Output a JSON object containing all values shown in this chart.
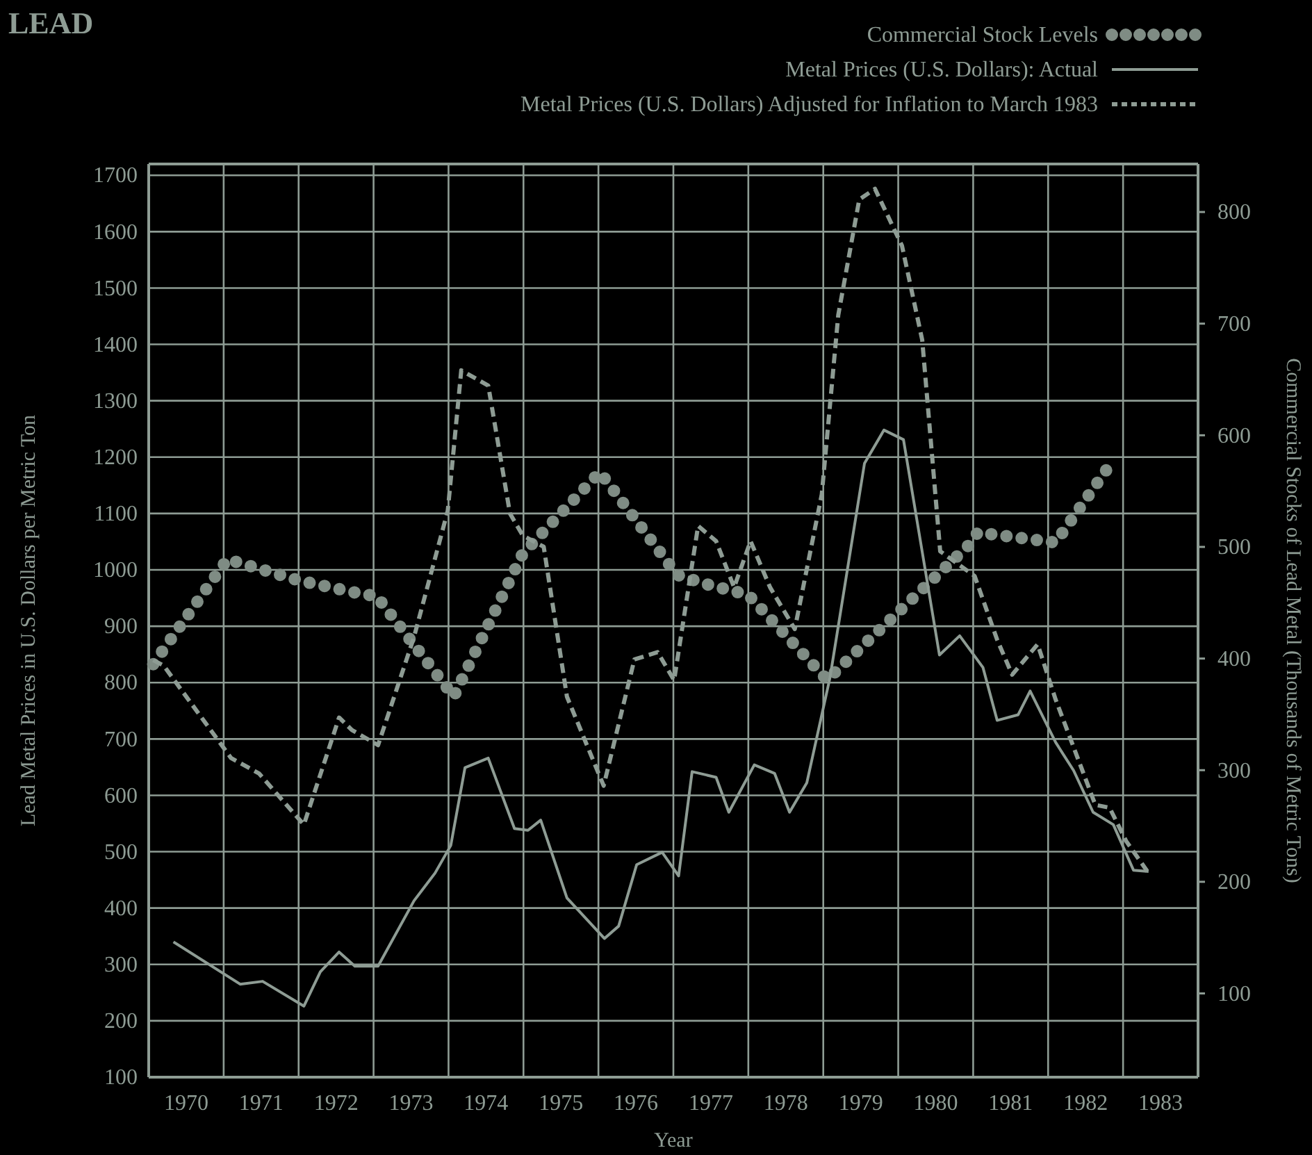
{
  "chart_data": {
    "type": "line",
    "title": "LEAD",
    "xlabel": "Year",
    "ylabel": "Lead Metal Prices in U.S. Dollars per Metric Ton",
    "y2label": "Commercial Stocks of Lead Metal (Thousands of Metric Tons)",
    "xlim": [
      1970,
      1984
    ],
    "xticks": [
      {
        "value": 1970,
        "label": null
      },
      {
        "value": 1970.5,
        "label": "1970"
      },
      {
        "value": 1971,
        "label": null
      },
      {
        "value": 1971.5,
        "label": "1971"
      },
      {
        "value": 1972,
        "label": null
      },
      {
        "value": 1972.5,
        "label": "1972"
      },
      {
        "value": 1973,
        "label": null
      },
      {
        "value": 1973.5,
        "label": "1973"
      },
      {
        "value": 1974,
        "label": null
      },
      {
        "value": 1974.5,
        "label": "1974"
      },
      {
        "value": 1975,
        "label": null
      },
      {
        "value": 1975.5,
        "label": "1975"
      },
      {
        "value": 1976,
        "label": null
      },
      {
        "value": 1976.5,
        "label": "1976"
      },
      {
        "value": 1977,
        "label": null
      },
      {
        "value": 1977.5,
        "label": "1977"
      },
      {
        "value": 1978,
        "label": null
      },
      {
        "value": 1978.5,
        "label": "1978"
      },
      {
        "value": 1979,
        "label": null
      },
      {
        "value": 1979.5,
        "label": "1979"
      },
      {
        "value": 1980,
        "label": null
      },
      {
        "value": 1980.5,
        "label": "1980"
      },
      {
        "value": 1981,
        "label": null
      },
      {
        "value": 1981.5,
        "label": "1981"
      },
      {
        "value": 1982,
        "label": null
      },
      {
        "value": 1982.5,
        "label": "1982"
      },
      {
        "value": 1983,
        "label": null
      },
      {
        "value": 1983.5,
        "label": "1983"
      },
      {
        "value": 1984,
        "label": null
      }
    ],
    "ylim": [
      100,
      1720
    ],
    "yticks": [
      100,
      200,
      300,
      400,
      500,
      600,
      700,
      800,
      900,
      1000,
      1100,
      1200,
      1300,
      1400,
      1500,
      1600,
      1700
    ],
    "y2lim": [
      25,
      843
    ],
    "y2ticks": [
      100,
      200,
      300,
      400,
      500,
      600,
      700,
      800
    ],
    "grid": true,
    "legend": "top right",
    "series": [
      {
        "name": "Commercial Stock Levels",
        "color": "#7f8c84",
        "axis": "y2",
        "line_style": "dotted",
        "x": [
          1970.06,
          1971.05,
          1972.0,
          1972.83,
          1973.04,
          1974.07,
          1974.99,
          1976.02,
          1977.05,
          1977.42,
          1978.0,
          1979.05,
          1980.98,
          1981.06,
          1982.1,
          1982.84
        ],
        "values": [
          395,
          489,
          470,
          458,
          456,
          366,
          494,
          567,
          475,
          467,
          457,
          381,
          504,
          513,
          504,
          575
        ]
      },
      {
        "name": "Metal Prices (U.S. Dollars): Actual",
        "color": "#8e9c94",
        "line_style": "solid",
        "x": [
          1970.33,
          1971.22,
          1971.52,
          1972.07,
          1972.29,
          1972.54,
          1972.75,
          1973.06,
          1973.54,
          1973.82,
          1974.03,
          1974.22,
          1974.53,
          1974.88,
          1975.06,
          1975.23,
          1975.58,
          1976.08,
          1976.27,
          1976.51,
          1976.85,
          1977.07,
          1977.25,
          1977.57,
          1977.74,
          1978.08,
          1978.35,
          1978.55,
          1978.78,
          1979.09,
          1979.55,
          1979.81,
          1980.07,
          1980.55,
          1980.82,
          1981.13,
          1981.32,
          1981.6,
          1981.76,
          1982.1,
          1982.34,
          1982.6,
          1982.87,
          1983.14,
          1983.34
        ],
        "values": [
          340,
          265,
          270,
          226,
          287,
          322,
          297,
          297,
          413,
          462,
          511,
          649,
          666,
          541,
          538,
          556,
          418,
          346,
          368,
          477,
          499,
          457,
          642,
          632,
          570,
          654,
          639,
          570,
          622,
          809,
          1189,
          1248,
          1231,
          849,
          883,
          827,
          733,
          743,
          785,
          694,
          644,
          570,
          548,
          467,
          465
        ]
      },
      {
        "name": "Metal Prices (U.S. Dollars) Adjusted for Inflation to March 1983",
        "color": "#8e9c94",
        "line_style": "dashed",
        "x": [
          1970.06,
          1970.2,
          1971.1,
          1971.47,
          1972.07,
          1972.54,
          1972.71,
          1973.06,
          1973.54,
          1973.99,
          1974.17,
          1974.53,
          1974.82,
          1974.99,
          1975.27,
          1975.58,
          1976.07,
          1976.48,
          1976.79,
          1977.01,
          1977.33,
          1977.57,
          1977.81,
          1978.03,
          1978.29,
          1978.62,
          1978.98,
          1979.2,
          1979.48,
          1979.69,
          1980.05,
          1980.32,
          1980.56,
          1981.02,
          1981.32,
          1981.52,
          1981.86,
          1982.1,
          1982.63,
          1982.82,
          1983.04,
          1983.34
        ],
        "values": [
          840,
          830,
          666,
          639,
          548,
          738,
          716,
          689,
          881,
          1105,
          1354,
          1327,
          1100,
          1061,
          1041,
          775,
          617,
          841,
          854,
          804,
          1078,
          1051,
          969,
          1051,
          969,
          895,
          1134,
          1452,
          1657,
          1676,
          1575,
          1408,
          1033,
          989,
          876,
          814,
          868,
          770,
          583,
          578,
          519,
          462
        ]
      }
    ]
  }
}
